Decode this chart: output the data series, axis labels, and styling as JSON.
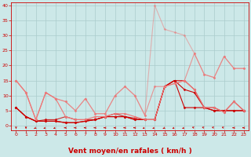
{
  "xlabel": "Vent moyen/en rafales ( km/h )",
  "xlim": [
    -0.5,
    23.5
  ],
  "ylim": [
    -1.5,
    41
  ],
  "yticks": [
    0,
    5,
    10,
    15,
    20,
    25,
    30,
    35,
    40
  ],
  "xticks": [
    0,
    1,
    2,
    3,
    4,
    5,
    6,
    7,
    8,
    9,
    10,
    11,
    12,
    13,
    14,
    15,
    16,
    17,
    18,
    19,
    20,
    21,
    22,
    23
  ],
  "bg_color": "#cce8e8",
  "grid_color": "#aacccc",
  "xlabel_color": "#cc0000",
  "xlabel_fontsize": 6.5,
  "series": [
    {
      "x": [
        0,
        1,
        2,
        3,
        4,
        5,
        6,
        7,
        8,
        9,
        10,
        11,
        12,
        13,
        14,
        15,
        16,
        17,
        18,
        19,
        20,
        21,
        22,
        23
      ],
      "y": [
        6,
        3,
        1.5,
        1.5,
        1.5,
        1,
        1,
        1.5,
        2,
        3,
        3,
        3,
        2,
        2,
        2,
        13,
        15,
        6,
        6,
        6,
        5,
        5,
        5,
        5
      ],
      "color": "#cc0000",
      "alpha": 1.0,
      "linewidth": 0.8,
      "marker": "D",
      "markersize": 1.5
    },
    {
      "x": [
        0,
        1,
        2,
        3,
        4,
        5,
        6,
        7,
        8,
        9,
        10,
        11,
        12,
        13,
        14,
        15,
        16,
        17,
        18,
        19,
        20,
        21,
        22,
        23
      ],
      "y": [
        6,
        3,
        1.5,
        1.5,
        1.5,
        1,
        1,
        1.5,
        2,
        3,
        3,
        3,
        2,
        2,
        2,
        13,
        15,
        12,
        11,
        6,
        5,
        5,
        5,
        5
      ],
      "color": "#cc0000",
      "alpha": 1.0,
      "linewidth": 0.8,
      "marker": "D",
      "markersize": 1.5
    },
    {
      "x": [
        0,
        1,
        2,
        3,
        4,
        5,
        6,
        7,
        8,
        9,
        10,
        11,
        12,
        13,
        14,
        15,
        16,
        17,
        18,
        19,
        20,
        21,
        22,
        23
      ],
      "y": [
        6,
        3,
        1.5,
        2,
        2,
        3,
        2,
        2,
        2,
        3,
        4,
        3,
        2.5,
        2,
        2,
        13,
        15,
        15,
        12,
        6,
        6,
        4.5,
        8,
        5
      ],
      "color": "#cc0000",
      "alpha": 0.8,
      "linewidth": 0.8,
      "marker": "D",
      "markersize": 1.5
    },
    {
      "x": [
        0,
        1,
        2,
        3,
        4,
        5,
        6,
        7,
        8,
        9,
        10,
        11,
        12,
        13,
        14,
        15,
        16,
        17,
        18,
        19,
        20,
        21,
        22,
        23
      ],
      "y": [
        15,
        11,
        2,
        11,
        9,
        3,
        2,
        2,
        3,
        3,
        4,
        4,
        3,
        2,
        2,
        13,
        14,
        15,
        12,
        6,
        6,
        4.5,
        8,
        5
      ],
      "color": "#ee7777",
      "alpha": 1.0,
      "linewidth": 0.8,
      "marker": "D",
      "markersize": 1.5
    },
    {
      "x": [
        0,
        1,
        2,
        3,
        4,
        5,
        6,
        7,
        8,
        9,
        10,
        11,
        12,
        13,
        14,
        15,
        16,
        17,
        18,
        19,
        20,
        21,
        22,
        23
      ],
      "y": [
        15,
        11,
        2,
        11,
        9,
        8,
        5,
        9,
        4,
        4,
        10,
        13,
        10,
        3.5,
        13,
        13,
        14,
        15,
        24,
        17,
        16,
        23,
        19,
        19
      ],
      "color": "#ee7777",
      "alpha": 0.75,
      "linewidth": 0.8,
      "marker": "D",
      "markersize": 1.5
    },
    {
      "x": [
        0,
        1,
        2,
        3,
        4,
        5,
        6,
        7,
        8,
        9,
        10,
        11,
        12,
        13,
        14,
        15,
        16,
        17,
        18,
        19,
        20,
        21,
        22,
        23
      ],
      "y": [
        15,
        11,
        2,
        11,
        9,
        8,
        5,
        9,
        4,
        4,
        10,
        13,
        10,
        3.5,
        40,
        32,
        31,
        30,
        24,
        17,
        16,
        23,
        19,
        19
      ],
      "color": "#ee7777",
      "alpha": 0.5,
      "linewidth": 0.8,
      "marker": "D",
      "markersize": 1.5
    }
  ],
  "wind_angles": [
    180,
    180,
    210,
    225,
    225,
    270,
    270,
    270,
    270,
    270,
    270,
    270,
    270,
    225,
    225,
    210,
    225,
    225,
    315,
    315,
    315,
    315,
    270,
    270
  ],
  "arrow_color": "#cc0000"
}
